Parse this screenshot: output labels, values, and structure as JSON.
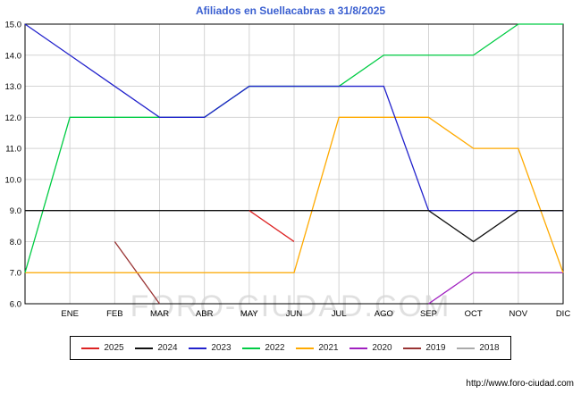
{
  "title": "Afiliados en Suellacabras a 31/8/2025",
  "title_color": "#3a5fd0",
  "watermark": "FORO-CIUDAD.COM",
  "footer_url": "http://www.foro-ciudad.com",
  "chart_data": {
    "type": "line",
    "title": "Afiliados en Suellacabras a 31/8/2025",
    "x_labels": [
      "ENE",
      "FEB",
      "MAR",
      "ABR",
      "MAY",
      "JUN",
      "JUL",
      "AGO",
      "SEP",
      "OCT",
      "NOV",
      "DIC"
    ],
    "ylim": [
      6,
      15
    ],
    "y_ticks": [
      "15.0",
      "14.0",
      "13.0",
      "12.0",
      "11.0",
      "10.0",
      "9.0",
      "8.0",
      "7.0",
      "6.0"
    ],
    "grid": true,
    "legend_position": "bottom",
    "first_point_at_left_edge": true,
    "series": [
      {
        "name": "2025",
        "color": "#dd2222",
        "values": [
          null,
          null,
          null,
          null,
          null,
          9,
          8,
          null,
          null,
          null,
          null,
          null,
          null
        ]
      },
      {
        "name": "2024",
        "color": "#111111",
        "values": [
          9,
          9,
          9,
          9,
          9,
          9,
          9,
          9,
          9,
          9,
          8,
          9,
          9
        ]
      },
      {
        "name": "2023",
        "color": "#2222cc",
        "values": [
          15,
          14,
          13,
          12,
          12,
          13,
          13,
          13,
          13,
          9,
          9,
          9,
          9
        ]
      },
      {
        "name": "2022",
        "color": "#00cc44",
        "values": [
          7,
          12,
          12,
          12,
          12,
          13,
          13,
          13,
          14,
          14,
          14,
          15,
          15
        ]
      },
      {
        "name": "2021",
        "color": "#ffaa00",
        "values": [
          7,
          7,
          7,
          7,
          7,
          7,
          7,
          12,
          12,
          12,
          11,
          11,
          7
        ]
      },
      {
        "name": "2020",
        "color": "#a020c0",
        "values": [
          null,
          null,
          null,
          null,
          null,
          null,
          null,
          null,
          null,
          6,
          7,
          7,
          7
        ]
      },
      {
        "name": "2019",
        "color": "#993333",
        "values": [
          null,
          null,
          8,
          6,
          null,
          null,
          null,
          null,
          null,
          null,
          null,
          null,
          null
        ]
      },
      {
        "name": "2018",
        "color": "#aaaaaa",
        "values": [
          null,
          null,
          null,
          null,
          null,
          null,
          null,
          null,
          null,
          null,
          null,
          null,
          null
        ]
      }
    ]
  },
  "legend": {
    "items": [
      {
        "label": "2025",
        "color": "#dd2222"
      },
      {
        "label": "2024",
        "color": "#111111"
      },
      {
        "label": "2023",
        "color": "#2222cc"
      },
      {
        "label": "2022",
        "color": "#00cc44"
      },
      {
        "label": "2021",
        "color": "#ffaa00"
      },
      {
        "label": "2020",
        "color": "#a020c0"
      },
      {
        "label": "2019",
        "color": "#993333"
      },
      {
        "label": "2018",
        "color": "#aaaaaa"
      }
    ]
  }
}
